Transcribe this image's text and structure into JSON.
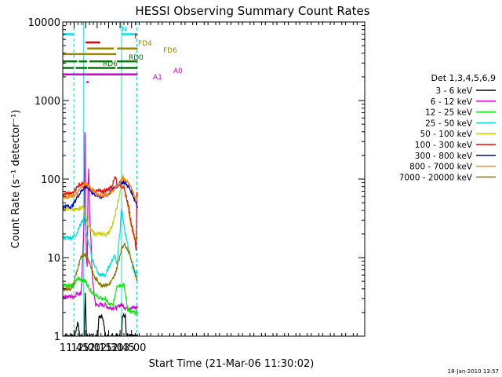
{
  "chart_data": {
    "type": "line",
    "title": "HESSI Observing Summary Count Rates",
    "xlabel": "Start Time (21-Mar-06 11:30:02)",
    "ylabel": "Count Rate (s⁻¹ detector⁻¹)",
    "ylog": true,
    "ylim": [
      1,
      10000
    ],
    "xlim_minutes": [
      690,
      1085
    ],
    "x_ticks": [
      {
        "t": 705,
        "label": "11:45"
      },
      {
        "t": 720,
        "label": "12:00"
      },
      {
        "t": 735,
        "label": "12:15"
      },
      {
        "t": 750,
        "label": "12:30"
      },
      {
        "t": 765,
        "label": "12:45"
      },
      {
        "t": 780,
        "label": "13:00"
      }
    ],
    "y_ticks": [
      {
        "v": 1,
        "label": "1"
      },
      {
        "v": 10,
        "label": "10"
      },
      {
        "v": 100,
        "label": "100"
      },
      {
        "v": 1000,
        "label": "1000"
      },
      {
        "v": 10000,
        "label": "10000"
      }
    ],
    "legend_title": "Det 1,3,4,5,6,9",
    "legend_placement": "right",
    "timestamp": "18-Jan-2010 13:57",
    "series": [
      {
        "name": "3 - 6 keV",
        "color": "#000000",
        "points": [
          [
            690,
            1.0
          ],
          [
            706,
            1.0
          ],
          [
            708,
            1.3
          ],
          [
            710,
            1.5
          ],
          [
            712,
            1.0
          ],
          [
            718,
            1.0
          ],
          [
            719.5,
            3.5
          ],
          [
            721,
            1.0
          ],
          [
            736,
            1.0
          ],
          [
            737,
            1.7
          ],
          [
            742,
            1.8
          ],
          [
            746,
            1.0
          ],
          [
            767,
            1.0
          ],
          [
            768,
            1.8
          ],
          [
            772,
            1.8
          ],
          [
            773,
            1.0
          ],
          [
            788,
            1.0
          ]
        ]
      },
      {
        "name": "6 - 12 keV",
        "color": "#dd00dd",
        "points": [
          [
            690,
            3.2
          ],
          [
            700,
            3.2
          ],
          [
            705,
            3.2
          ],
          [
            708,
            3.5
          ],
          [
            714,
            3.5
          ],
          [
            716,
            10
          ],
          [
            718,
            30
          ],
          [
            719,
            400
          ],
          [
            720,
            45
          ],
          [
            721,
            10
          ],
          [
            722,
            8
          ],
          [
            723,
            70
          ],
          [
            724,
            140
          ],
          [
            725,
            40
          ],
          [
            727,
            15
          ],
          [
            729,
            5
          ],
          [
            731,
            3.5
          ],
          [
            733,
            2.5
          ],
          [
            736,
            2.5
          ],
          [
            741,
            2.5
          ],
          [
            746,
            2.5
          ],
          [
            750,
            2.3
          ],
          [
            755,
            2.3
          ],
          [
            761,
            2.3
          ],
          [
            765,
            2.5
          ],
          [
            768,
            2.5
          ],
          [
            772,
            2.3
          ],
          [
            778,
            2.3
          ],
          [
            782,
            2.3
          ],
          [
            788,
            2.3
          ]
        ]
      },
      {
        "name": "12 - 25 keV",
        "color": "#00ee00",
        "points": [
          [
            690,
            4.5
          ],
          [
            700,
            4.5
          ],
          [
            705,
            4.5
          ],
          [
            710,
            5.5
          ],
          [
            715,
            5.2
          ],
          [
            720,
            5.0
          ],
          [
            725,
            4.0
          ],
          [
            730,
            3.5
          ],
          [
            735,
            3.2
          ],
          [
            740,
            3.0
          ],
          [
            746,
            3.0
          ],
          [
            751,
            2.5
          ],
          [
            756,
            2.5
          ],
          [
            761,
            4.5
          ],
          [
            765,
            4.5
          ],
          [
            770,
            4.5
          ],
          [
            775,
            2.2
          ],
          [
            780,
            2.0
          ],
          [
            788,
            2.0
          ]
        ]
      },
      {
        "name": "25 - 50 keV",
        "color": "#00dddd",
        "points": [
          [
            690,
            18
          ],
          [
            702,
            18
          ],
          [
            708,
            20
          ],
          [
            712,
            25
          ],
          [
            716,
            30
          ],
          [
            719,
            35
          ],
          [
            720,
            22
          ],
          [
            722,
            18
          ],
          [
            724,
            15
          ],
          [
            726,
            13
          ],
          [
            728,
            10
          ],
          [
            732,
            8
          ],
          [
            737,
            6
          ],
          [
            742,
            6
          ],
          [
            746,
            6
          ],
          [
            750,
            7.5
          ],
          [
            754,
            9
          ],
          [
            758,
            11
          ],
          [
            761,
            8
          ],
          [
            763,
            15
          ],
          [
            765,
            22
          ],
          [
            766,
            35
          ],
          [
            767,
            42
          ],
          [
            768,
            38
          ],
          [
            769,
            30
          ],
          [
            771,
            22
          ],
          [
            774,
            16
          ],
          [
            777,
            12
          ],
          [
            779,
            10
          ],
          [
            781,
            8
          ],
          [
            783,
            7
          ],
          [
            785,
            6.5
          ],
          [
            788,
            6.5
          ]
        ]
      },
      {
        "name": "50 - 100 keV",
        "color": "#cccc00",
        "points": [
          [
            690,
            42
          ],
          [
            702,
            42
          ],
          [
            708,
            40
          ],
          [
            712,
            42
          ],
          [
            716,
            45
          ],
          [
            719,
            38
          ],
          [
            722,
            28
          ],
          [
            724,
            25
          ],
          [
            728,
            22
          ],
          [
            732,
            20
          ],
          [
            738,
            20
          ],
          [
            744,
            20
          ],
          [
            748,
            20
          ],
          [
            751,
            22
          ],
          [
            754,
            25
          ],
          [
            757,
            30
          ],
          [
            760,
            40
          ],
          [
            763,
            55
          ],
          [
            766,
            75
          ],
          [
            768,
            100
          ],
          [
            769,
            110
          ],
          [
            770,
            90
          ],
          [
            772,
            65
          ],
          [
            775,
            45
          ],
          [
            778,
            30
          ],
          [
            781,
            22
          ],
          [
            784,
            18
          ],
          [
            788,
            18
          ]
        ]
      },
      {
        "name": "100 - 300 keV",
        "color": "#ff0000",
        "points": [
          [
            690,
            65
          ],
          [
            702,
            65
          ],
          [
            705,
            72
          ],
          [
            707,
            75
          ],
          [
            709,
            80
          ],
          [
            712,
            85
          ],
          [
            714,
            85
          ],
          [
            716,
            88
          ],
          [
            719,
            85
          ],
          [
            722,
            80
          ],
          [
            726,
            75
          ],
          [
            730,
            72
          ],
          [
            734,
            70
          ],
          [
            738,
            70
          ],
          [
            742,
            70
          ],
          [
            746,
            72
          ],
          [
            750,
            75
          ],
          [
            753,
            80
          ],
          [
            756,
            90
          ],
          [
            758,
            110
          ],
          [
            760,
            100
          ],
          [
            761,
            80
          ],
          [
            763,
            85
          ],
          [
            765,
            85
          ],
          [
            768,
            80
          ],
          [
            770,
            75
          ],
          [
            773,
            60
          ],
          [
            776,
            45
          ],
          [
            779,
            30
          ],
          [
            782,
            22
          ],
          [
            784,
            18
          ],
          [
            786,
            12
          ],
          [
            787,
            70
          ],
          [
            788,
            60
          ]
        ]
      },
      {
        "name": "300 - 800 keV",
        "color": "#0000dd",
        "points": [
          [
            690,
            45
          ],
          [
            702,
            45
          ],
          [
            706,
            52
          ],
          [
            709,
            60
          ],
          [
            712,
            65
          ],
          [
            715,
            72
          ],
          [
            718,
            78
          ],
          [
            720,
            80
          ],
          [
            722,
            78
          ],
          [
            726,
            72
          ],
          [
            730,
            66
          ],
          [
            734,
            62
          ],
          [
            738,
            60
          ],
          [
            742,
            60
          ],
          [
            746,
            62
          ],
          [
            750,
            65
          ],
          [
            753,
            70
          ],
          [
            756,
            75
          ],
          [
            758,
            78
          ],
          [
            760,
            80
          ],
          [
            763,
            85
          ],
          [
            766,
            90
          ],
          [
            769,
            92
          ],
          [
            772,
            88
          ],
          [
            776,
            80
          ],
          [
            780,
            68
          ],
          [
            784,
            55
          ],
          [
            788,
            45
          ]
        ]
      },
      {
        "name": "800 - 7000 keV",
        "color": "#ff8800",
        "points": [
          [
            690,
            60
          ],
          [
            702,
            60
          ],
          [
            706,
            62
          ],
          [
            710,
            68
          ],
          [
            714,
            78
          ],
          [
            718,
            85
          ],
          [
            720,
            88
          ],
          [
            722,
            86
          ],
          [
            726,
            78
          ],
          [
            730,
            70
          ],
          [
            734,
            66
          ],
          [
            738,
            63
          ],
          [
            742,
            62
          ],
          [
            746,
            62
          ],
          [
            750,
            65
          ],
          [
            753,
            68
          ],
          [
            756,
            72
          ],
          [
            758,
            75
          ],
          [
            761,
            78
          ],
          [
            764,
            85
          ],
          [
            767,
            100
          ],
          [
            770,
            102
          ],
          [
            773,
            98
          ],
          [
            776,
            88
          ],
          [
            780,
            75
          ],
          [
            784,
            62
          ],
          [
            788,
            52
          ]
        ]
      },
      {
        "name": "7000 - 20000 keV",
        "color": "#887700",
        "points": [
          [
            690,
            4.0
          ],
          [
            702,
            4.0
          ],
          [
            705,
            5.0
          ],
          [
            708,
            6.5
          ],
          [
            711,
            8.0
          ],
          [
            714,
            10
          ],
          [
            717,
            11
          ],
          [
            720,
            11
          ],
          [
            723,
            10
          ],
          [
            726,
            8.0
          ],
          [
            729,
            6.5
          ],
          [
            732,
            5.5
          ],
          [
            736,
            5.0
          ],
          [
            740,
            4.5
          ],
          [
            745,
            4.5
          ],
          [
            750,
            4.5
          ],
          [
            754,
            5.0
          ],
          [
            758,
            6.0
          ],
          [
            761,
            7.5
          ],
          [
            764,
            10
          ],
          [
            767,
            13
          ],
          [
            770,
            15
          ],
          [
            773,
            14
          ],
          [
            776,
            12
          ],
          [
            779,
            10
          ],
          [
            782,
            8.0
          ],
          [
            785,
            6.0
          ],
          [
            788,
            5.0
          ]
        ]
      }
    ],
    "flag_bars": [
      {
        "label": "N",
        "color": "#00e0e0",
        "segments": [
          [
            690,
            705
          ],
          [
            767.5,
            788
          ]
        ],
        "level": 7000
      },
      {
        "label": "F",
        "color": "#ee0000",
        "segments": [
          [
            720,
            739
          ]
        ],
        "level": 5500
      },
      {
        "label": "FD4",
        "color": "#998800",
        "segments": [
          [
            722,
            757
          ],
          [
            761,
            788
          ]
        ],
        "level": 4600
      },
      {
        "label": "FD6",
        "color": "#998800",
        "segments": [
          [
            690,
            760
          ]
        ],
        "level": 3900
      },
      {
        "label": "RD0",
        "color": "#007700",
        "segments": [
          [
            690,
            709
          ],
          [
            711,
            722
          ],
          [
            725,
            755
          ],
          [
            761,
            788
          ]
        ],
        "level": 3150
      },
      {
        "label": "RD6",
        "color": "#007700",
        "segments": [
          [
            690,
            704
          ],
          [
            707,
            722
          ],
          [
            723,
            759
          ],
          [
            761,
            788
          ]
        ],
        "level": 2600
      },
      {
        "label": "A0",
        "color": "#cc00cc",
        "segments": [
          [
            690,
            788
          ]
        ],
        "level": 2150
      },
      {
        "label": "A1",
        "color": "#cc00cc",
        "segments": [
          [
            721,
            724
          ]
        ],
        "level": 1720
      }
    ],
    "markers": [
      {
        "t": 704.5,
        "style": "dashed",
        "color": "#00dddd"
      },
      {
        "t": 717.5,
        "style": "solid",
        "color": "#00dddd"
      },
      {
        "t": 767,
        "style": "solid",
        "color": "#00dddd"
      },
      {
        "t": 787,
        "style": "dashed",
        "color": "#00dddd"
      }
    ]
  }
}
